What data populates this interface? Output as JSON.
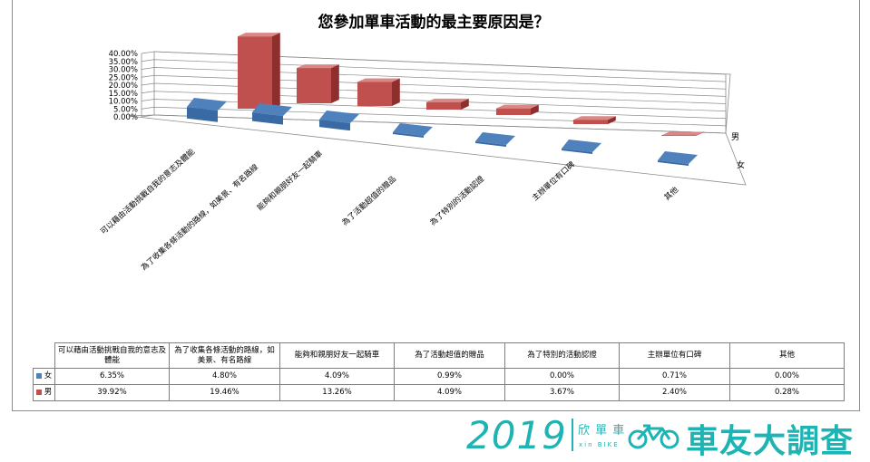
{
  "chart_data": {
    "type": "bar",
    "style": "3d-column",
    "title": "您參加單車活動的最主要原因是？",
    "categories": [
      "可以藉由活動挑戰自我的意志及體能",
      "為了收集各條活動的路線，如美景、有名路線",
      "能夠和親朋好友一起騎車",
      "為了活動超值的贈品",
      "為了特別的活動認證",
      "主辦單位有口碑",
      "其他"
    ],
    "table_headers": [
      "可以藉由活動挑戰自我的意志及體能",
      "為了收集各條活動的路線，如美景、有名路線",
      "能夠和親朋好友一起騎車",
      "為了活動超值的贈品",
      "為了特別的活動認證",
      "主辦單位有口碑",
      "其他"
    ],
    "series": [
      {
        "name": "女",
        "color": "#4f81bd",
        "values": [
          6.35,
          4.8,
          4.09,
          0.99,
          0.0,
          0.71,
          0.0
        ],
        "labels": [
          "6.35%",
          "4.80%",
          "4.09%",
          "0.99%",
          "0.00%",
          "0.71%",
          "0.00%"
        ]
      },
      {
        "name": "男",
        "color": "#c0504d",
        "values": [
          39.92,
          19.46,
          13.26,
          4.09,
          3.67,
          2.4,
          0.28
        ],
        "labels": [
          "39.92%",
          "19.46%",
          "13.26%",
          "4.09%",
          "3.67%",
          "2.40%",
          "0.28%"
        ]
      }
    ],
    "yticks": [
      "0.00%",
      "5.00%",
      "10.00%",
      "15.00%",
      "20.00%",
      "25.00%",
      "30.00%",
      "35.00%",
      "40.00%"
    ],
    "ylim": [
      0,
      40
    ],
    "grid": true,
    "data_table": true
  },
  "footer": {
    "year": "2019",
    "brand_top": "欣 單 車",
    "brand_sub": "xin BIKE",
    "survey_title": "車友大調查"
  },
  "colors": {
    "accent": "#1fb4b4"
  }
}
